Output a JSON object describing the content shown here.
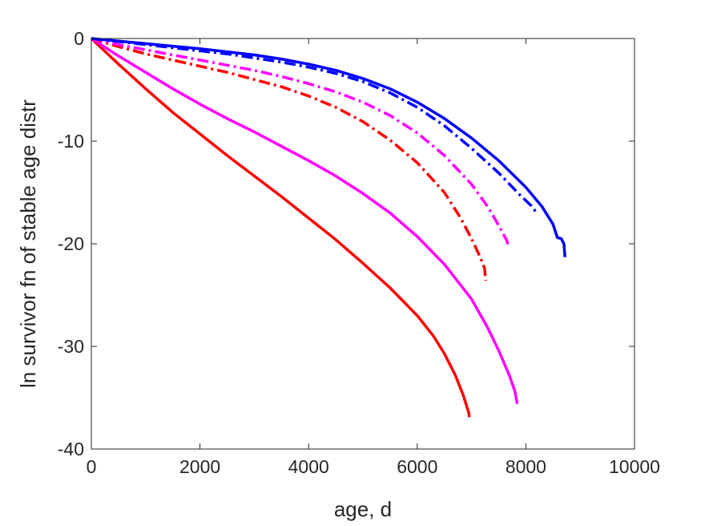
{
  "chart_data": {
    "type": "line",
    "title": "",
    "xlabel": "age, d",
    "ylabel": "ln survivor fn of stable age distr",
    "xlim": [
      0,
      10000
    ],
    "ylim": [
      -40,
      0
    ],
    "xticks": [
      0,
      2000,
      4000,
      6000,
      8000,
      10000
    ],
    "yticks": [
      0,
      -10,
      -20,
      -30,
      -40
    ],
    "grid": false,
    "legend": "none",
    "series": [
      {
        "color": "#ff0000",
        "style": "solid",
        "points": [
          [
            0,
            0
          ],
          [
            500,
            -2.5
          ],
          [
            1000,
            -4.9
          ],
          [
            1500,
            -7.2
          ],
          [
            2000,
            -9.3
          ],
          [
            2500,
            -11.4
          ],
          [
            3000,
            -13.4
          ],
          [
            3500,
            -15.4
          ],
          [
            4000,
            -17.5
          ],
          [
            4500,
            -19.6
          ],
          [
            5000,
            -21.9
          ],
          [
            5500,
            -24.3
          ],
          [
            6000,
            -27.0
          ],
          [
            6300,
            -29.0
          ],
          [
            6500,
            -30.7
          ],
          [
            6700,
            -32.8
          ],
          [
            6850,
            -34.8
          ],
          [
            6950,
            -36.5
          ],
          [
            6960,
            -36.9
          ]
        ]
      },
      {
        "color": "#ff00ff",
        "style": "solid",
        "points": [
          [
            0,
            0
          ],
          [
            500,
            -1.7
          ],
          [
            1000,
            -3.3
          ],
          [
            1500,
            -4.9
          ],
          [
            2000,
            -6.4
          ],
          [
            2500,
            -7.8
          ],
          [
            3000,
            -9.1
          ],
          [
            3500,
            -10.5
          ],
          [
            4000,
            -11.9
          ],
          [
            4500,
            -13.4
          ],
          [
            5000,
            -15.1
          ],
          [
            5500,
            -17.0
          ],
          [
            6000,
            -19.3
          ],
          [
            6500,
            -22.0
          ],
          [
            7000,
            -25.4
          ],
          [
            7300,
            -28.2
          ],
          [
            7500,
            -30.4
          ],
          [
            7700,
            -32.9
          ],
          [
            7800,
            -34.4
          ],
          [
            7840,
            -35.6
          ]
        ]
      },
      {
        "color": "#ff0000",
        "style": "dashdot",
        "points": [
          [
            0,
            0
          ],
          [
            500,
            -0.8
          ],
          [
            1000,
            -1.5
          ],
          [
            1500,
            -2.1
          ],
          [
            2000,
            -2.7
          ],
          [
            2500,
            -3.3
          ],
          [
            3000,
            -4.0
          ],
          [
            3500,
            -4.7
          ],
          [
            4000,
            -5.6
          ],
          [
            4500,
            -6.7
          ],
          [
            5000,
            -8.1
          ],
          [
            5500,
            -9.9
          ],
          [
            6000,
            -12.1
          ],
          [
            6500,
            -15.0
          ],
          [
            6800,
            -17.5
          ],
          [
            7000,
            -19.5
          ],
          [
            7150,
            -21.2
          ],
          [
            7240,
            -22.4
          ],
          [
            7260,
            -23.6
          ]
        ]
      },
      {
        "color": "#ff00ff",
        "style": "dashdot",
        "points": [
          [
            0,
            0
          ],
          [
            500,
            -0.6
          ],
          [
            1000,
            -1.1
          ],
          [
            1500,
            -1.6
          ],
          [
            2000,
            -2.1
          ],
          [
            2500,
            -2.6
          ],
          [
            3000,
            -3.1
          ],
          [
            3500,
            -3.7
          ],
          [
            4000,
            -4.4
          ],
          [
            4500,
            -5.2
          ],
          [
            5000,
            -6.2
          ],
          [
            5500,
            -7.5
          ],
          [
            6000,
            -9.2
          ],
          [
            6500,
            -11.4
          ],
          [
            7000,
            -14.2
          ],
          [
            7300,
            -16.4
          ],
          [
            7500,
            -18.2
          ],
          [
            7650,
            -19.7
          ],
          [
            7690,
            -20.4
          ]
        ]
      },
      {
        "color": "#0000ff",
        "style": "dashdot",
        "points": [
          [
            0,
            0
          ],
          [
            500,
            -0.3
          ],
          [
            1000,
            -0.6
          ],
          [
            1500,
            -0.9
          ],
          [
            2000,
            -1.2
          ],
          [
            2500,
            -1.5
          ],
          [
            3000,
            -1.9
          ],
          [
            3500,
            -2.3
          ],
          [
            4000,
            -2.8
          ],
          [
            4500,
            -3.4
          ],
          [
            5000,
            -4.2
          ],
          [
            5500,
            -5.3
          ],
          [
            6000,
            -6.7
          ],
          [
            6500,
            -8.5
          ],
          [
            7000,
            -10.7
          ],
          [
            7500,
            -13.1
          ],
          [
            7900,
            -15.3
          ],
          [
            8100,
            -16.3
          ],
          [
            8200,
            -17.0
          ]
        ]
      },
      {
        "color": "#0000ff",
        "style": "solid",
        "points": [
          [
            0,
            0
          ],
          [
            500,
            -0.25
          ],
          [
            1000,
            -0.5
          ],
          [
            1500,
            -0.75
          ],
          [
            2000,
            -1.0
          ],
          [
            2500,
            -1.3
          ],
          [
            3000,
            -1.6
          ],
          [
            3500,
            -2.0
          ],
          [
            4000,
            -2.5
          ],
          [
            4500,
            -3.1
          ],
          [
            5000,
            -3.9
          ],
          [
            5500,
            -4.9
          ],
          [
            6000,
            -6.2
          ],
          [
            6500,
            -7.8
          ],
          [
            7000,
            -9.7
          ],
          [
            7500,
            -11.9
          ],
          [
            8000,
            -14.5
          ],
          [
            8300,
            -16.4
          ],
          [
            8500,
            -18.1
          ],
          [
            8580,
            -19.4
          ],
          [
            8650,
            -19.5
          ],
          [
            8700,
            -20.0
          ],
          [
            8720,
            -21.3
          ]
        ]
      }
    ]
  }
}
